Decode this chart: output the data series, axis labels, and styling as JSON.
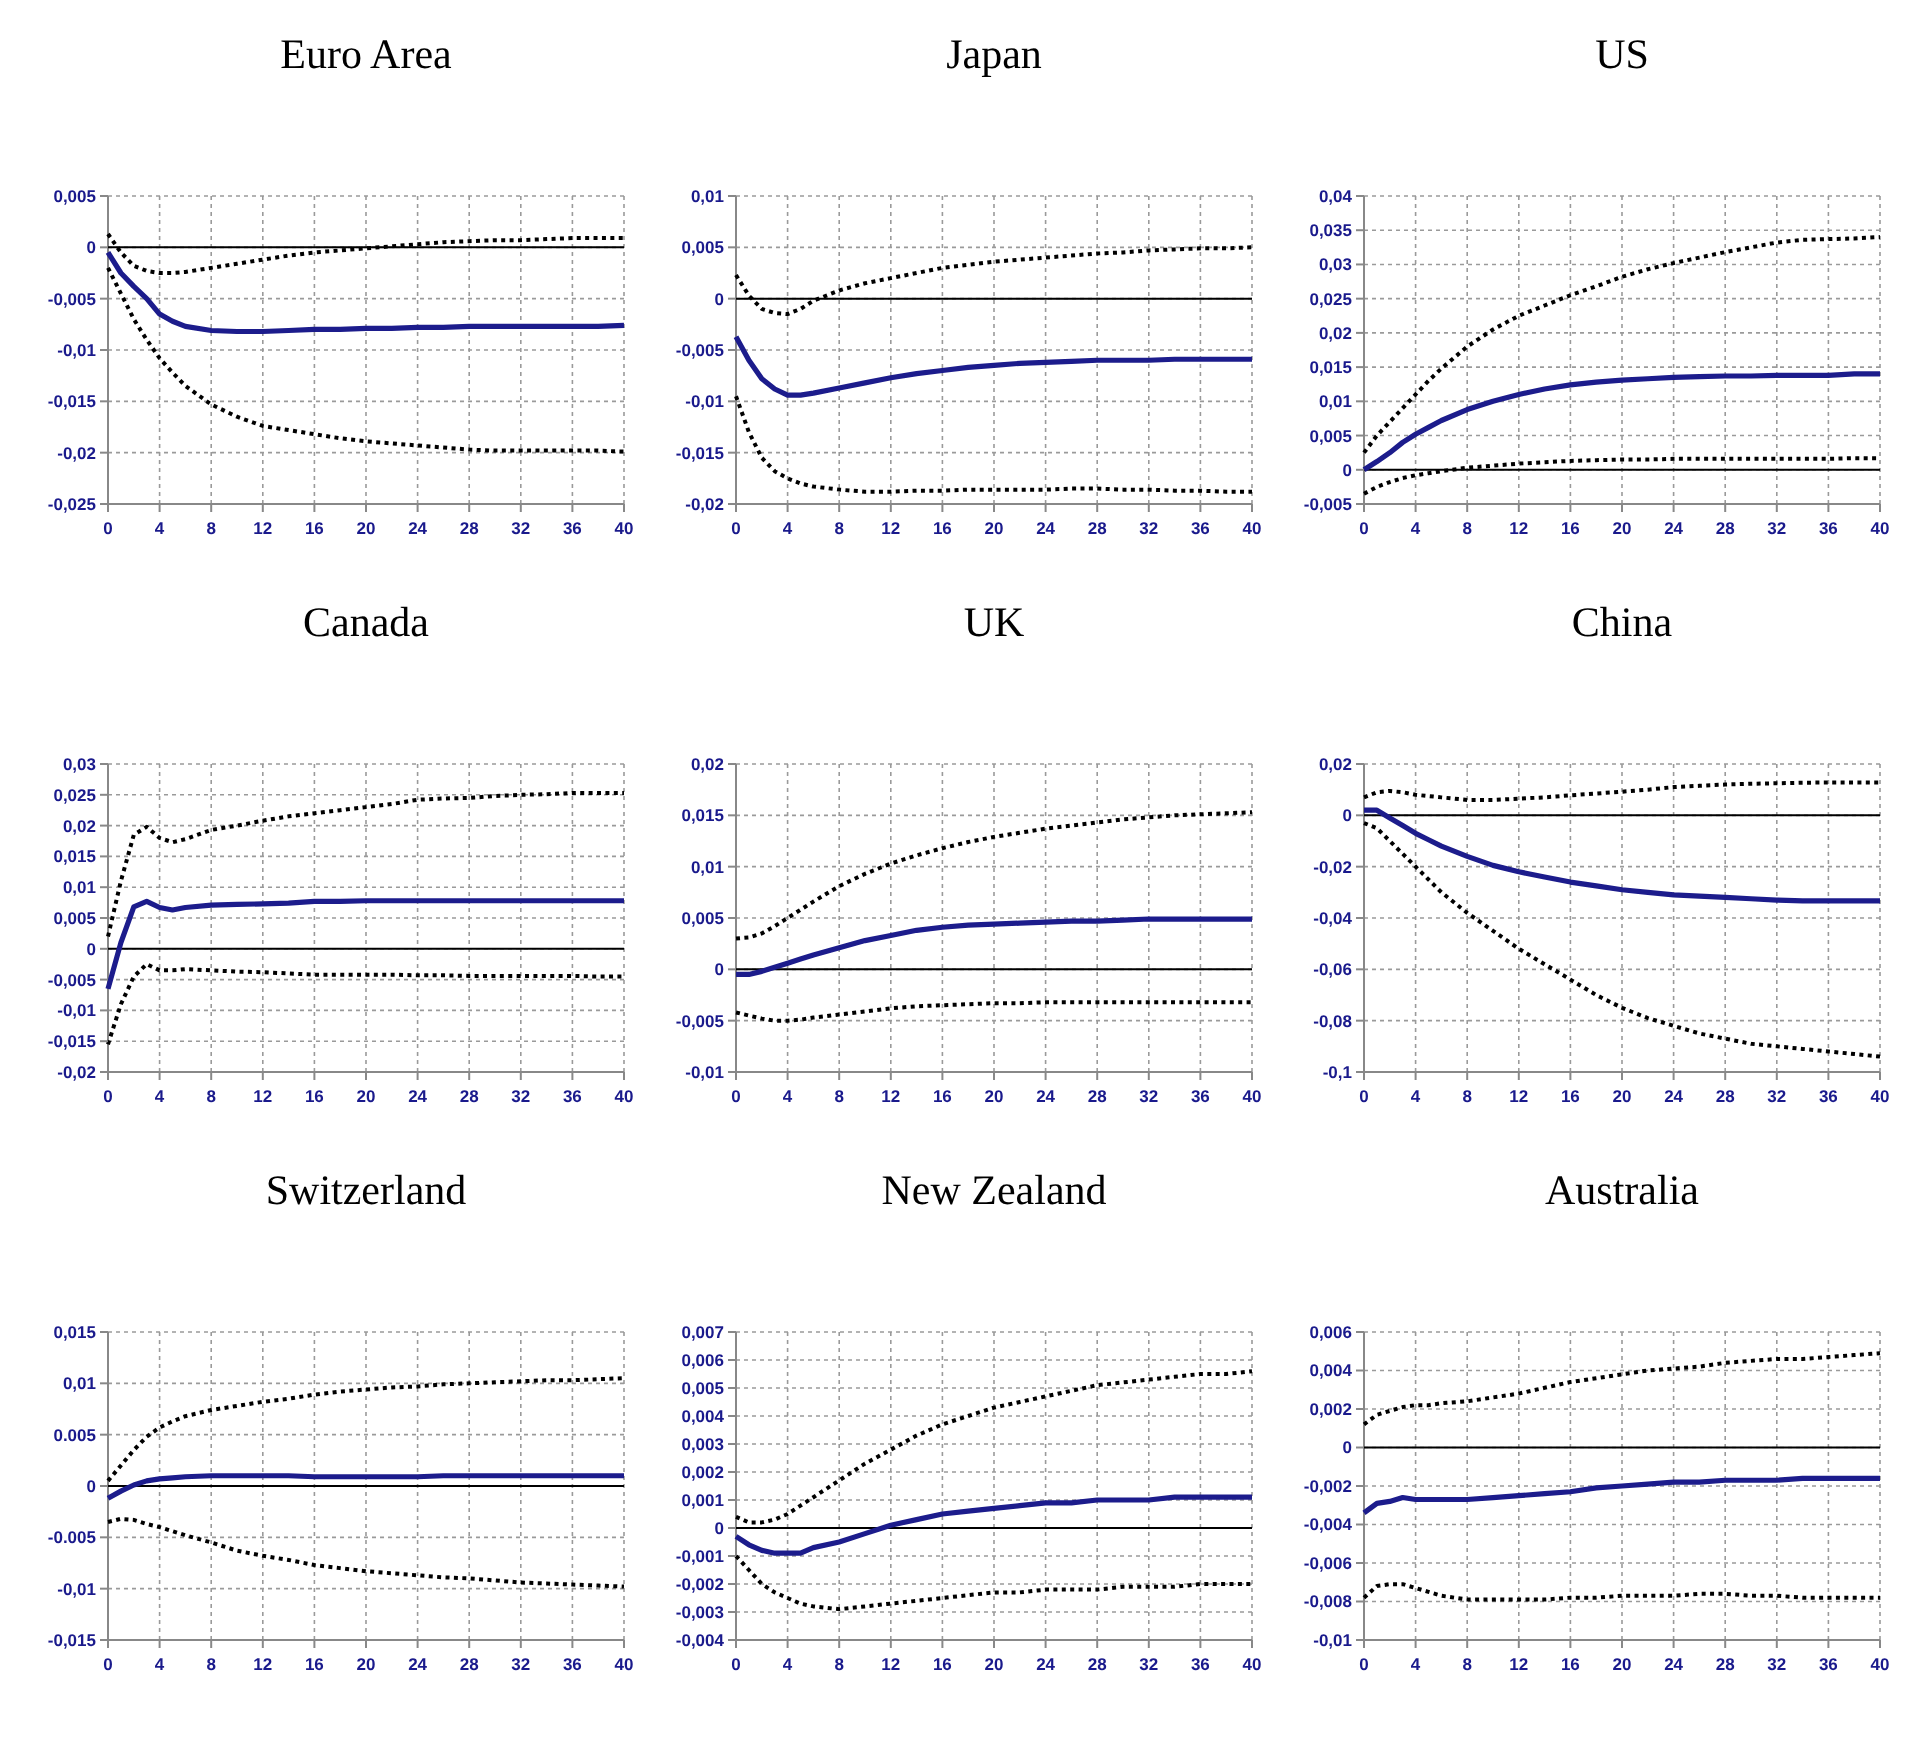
{
  "chart_data": [
    {
      "type": "line",
      "title": "Euro Area",
      "x": [
        0,
        1,
        2,
        3,
        4,
        5,
        6,
        8,
        10,
        12,
        14,
        16,
        18,
        20,
        22,
        24,
        26,
        28,
        30,
        32,
        34,
        36,
        38,
        40
      ],
      "xlim": [
        0,
        40
      ],
      "xticks": [
        0,
        4,
        8,
        12,
        16,
        20,
        24,
        28,
        32,
        36,
        40
      ],
      "ylim": [
        -0.025,
        0.005
      ],
      "yticks": [
        {
          "value": -0.025,
          "label": "-0,025"
        },
        {
          "value": -0.02,
          "label": "-0,02"
        },
        {
          "value": -0.015,
          "label": "-0,015"
        },
        {
          "value": -0.01,
          "label": "-0,01"
        },
        {
          "value": -0.005,
          "label": "-0,005"
        },
        {
          "value": 0,
          "label": "0"
        },
        {
          "value": 0.005,
          "label": "0,005"
        }
      ],
      "grid": true,
      "ref_lines": [
        {
          "axis": "y",
          "value": 0,
          "color": "#000000"
        }
      ],
      "series": [
        {
          "type": "line",
          "color": "#000000",
          "line_style": "dotted",
          "values": [
            0.0013,
            -0.0005,
            -0.0018,
            -0.0023,
            -0.0025,
            -0.0025,
            -0.0024,
            -0.002,
            -0.0016,
            -0.0012,
            -0.0008,
            -0.0005,
            -0.0003,
            -0.0001,
            0.0001,
            0.0003,
            0.0005,
            0.0006,
            0.0007,
            0.0007,
            0.0008,
            0.0009,
            0.0009,
            0.0009
          ]
        },
        {
          "type": "line",
          "color": "#1c1c8c",
          "line_style": "solid",
          "values": [
            -0.0005,
            -0.0025,
            -0.0038,
            -0.005,
            -0.0065,
            -0.0072,
            -0.0077,
            -0.0081,
            -0.0082,
            -0.0082,
            -0.0081,
            -0.008,
            -0.008,
            -0.0079,
            -0.0079,
            -0.0078,
            -0.0078,
            -0.0077,
            -0.0077,
            -0.0077,
            -0.0077,
            -0.0077,
            -0.0077,
            -0.0076
          ]
        },
        {
          "type": "line",
          "color": "#000000",
          "line_style": "dotted",
          "values": [
            -0.002,
            -0.0045,
            -0.007,
            -0.009,
            -0.0108,
            -0.0122,
            -0.0135,
            -0.0153,
            -0.0165,
            -0.0174,
            -0.0178,
            -0.0182,
            -0.0186,
            -0.0189,
            -0.0191,
            -0.0193,
            -0.0195,
            -0.0197,
            -0.0198,
            -0.0198,
            -0.0198,
            -0.0198,
            -0.0198,
            -0.0199
          ]
        }
      ]
    },
    {
      "type": "line",
      "title": "Japan",
      "x": [
        0,
        1,
        2,
        3,
        4,
        5,
        6,
        8,
        10,
        12,
        14,
        16,
        18,
        20,
        22,
        24,
        26,
        28,
        30,
        32,
        34,
        36,
        38,
        40
      ],
      "xlim": [
        0,
        40
      ],
      "xticks": [
        0,
        4,
        8,
        12,
        16,
        20,
        24,
        28,
        32,
        36,
        40
      ],
      "ylim": [
        -0.02,
        0.01
      ],
      "yticks": [
        {
          "value": -0.02,
          "label": "-0,02"
        },
        {
          "value": -0.015,
          "label": "-0,015"
        },
        {
          "value": -0.01,
          "label": "-0,01"
        },
        {
          "value": -0.005,
          "label": "-0,005"
        },
        {
          "value": 0,
          "label": "0"
        },
        {
          "value": 0.005,
          "label": "0,005"
        },
        {
          "value": 0.01,
          "label": "0,01"
        }
      ],
      "grid": true,
      "ref_lines": [
        {
          "axis": "y",
          "value": 0,
          "color": "#000000"
        }
      ],
      "series": [
        {
          "type": "line",
          "color": "#000000",
          "line_style": "dotted",
          "values": [
            0.0023,
            0.0003,
            -0.001,
            -0.0014,
            -0.0015,
            -0.001,
            -0.0002,
            0.0008,
            0.0015,
            0.002,
            0.0025,
            0.003,
            0.0033,
            0.0036,
            0.0038,
            0.004,
            0.0042,
            0.0044,
            0.0045,
            0.0047,
            0.0048,
            0.0049,
            0.0049,
            0.005
          ]
        },
        {
          "type": "line",
          "color": "#1c1c8c",
          "line_style": "solid",
          "values": [
            -0.0037,
            -0.006,
            -0.0078,
            -0.0088,
            -0.0094,
            -0.0094,
            -0.0092,
            -0.0087,
            -0.0082,
            -0.0077,
            -0.0073,
            -0.007,
            -0.0067,
            -0.0065,
            -0.0063,
            -0.0062,
            -0.0061,
            -0.006,
            -0.006,
            -0.006,
            -0.0059,
            -0.0059,
            -0.0059,
            -0.0059
          ]
        },
        {
          "type": "line",
          "color": "#000000",
          "line_style": "dotted",
          "values": [
            -0.0095,
            -0.013,
            -0.0155,
            -0.0168,
            -0.0175,
            -0.018,
            -0.0183,
            -0.0186,
            -0.0188,
            -0.0188,
            -0.0187,
            -0.0187,
            -0.0186,
            -0.0186,
            -0.0186,
            -0.0186,
            -0.0185,
            -0.0185,
            -0.0186,
            -0.0186,
            -0.0187,
            -0.0187,
            -0.0188,
            -0.0188
          ]
        }
      ]
    },
    {
      "type": "line",
      "title": "US",
      "x": [
        0,
        1,
        2,
        3,
        4,
        5,
        6,
        8,
        10,
        12,
        14,
        16,
        18,
        20,
        22,
        24,
        26,
        28,
        30,
        32,
        34,
        36,
        38,
        40
      ],
      "xlim": [
        0,
        40
      ],
      "xticks": [
        0,
        4,
        8,
        12,
        16,
        20,
        24,
        28,
        32,
        36,
        40
      ],
      "ylim": [
        -0.005,
        0.04
      ],
      "yticks": [
        {
          "value": -0.005,
          "label": "-0,005"
        },
        {
          "value": 0,
          "label": "0"
        },
        {
          "value": 0.005,
          "label": "0,005"
        },
        {
          "value": 0.01,
          "label": "0,01"
        },
        {
          "value": 0.015,
          "label": "0,015"
        },
        {
          "value": 0.02,
          "label": "0,02"
        },
        {
          "value": 0.025,
          "label": "0,025"
        },
        {
          "value": 0.03,
          "label": "0,03"
        },
        {
          "value": 0.035,
          "label": "0,035"
        },
        {
          "value": 0.04,
          "label": "0,04"
        }
      ],
      "grid": true,
      "ref_lines": [
        {
          "axis": "y",
          "value": 0,
          "color": "#000000"
        }
      ],
      "series": [
        {
          "type": "line",
          "color": "#000000",
          "line_style": "dotted",
          "values": [
            0.0025,
            0.005,
            0.007,
            0.009,
            0.011,
            0.013,
            0.0148,
            0.018,
            0.0205,
            0.0225,
            0.024,
            0.0255,
            0.0268,
            0.0282,
            0.0293,
            0.0302,
            0.031,
            0.0318,
            0.0325,
            0.0332,
            0.0336,
            0.0337,
            0.0338,
            0.034
          ]
        },
        {
          "type": "line",
          "color": "#1c1c8c",
          "line_style": "solid",
          "values": [
            0,
            0.0012,
            0.0025,
            0.004,
            0.0052,
            0.0062,
            0.0072,
            0.0088,
            0.01,
            0.011,
            0.0118,
            0.0124,
            0.0128,
            0.0131,
            0.0133,
            0.0135,
            0.0136,
            0.0137,
            0.0137,
            0.0138,
            0.0138,
            0.0138,
            0.014,
            0.014
          ]
        },
        {
          "type": "line",
          "color": "#000000",
          "line_style": "dotted",
          "values": [
            -0.0035,
            -0.0025,
            -0.0018,
            -0.0012,
            -0.0008,
            -0.0005,
            -0.0002,
            0.0003,
            0.0006,
            0.0009,
            0.0011,
            0.0013,
            0.0014,
            0.0015,
            0.0015,
            0.0016,
            0.0016,
            0.0016,
            0.0016,
            0.0016,
            0.0016,
            0.0016,
            0.0017,
            0.0017
          ]
        }
      ]
    },
    {
      "type": "line",
      "title": "Canada",
      "x": [
        0,
        1,
        2,
        3,
        4,
        5,
        6,
        8,
        10,
        12,
        14,
        16,
        18,
        20,
        22,
        24,
        26,
        28,
        30,
        32,
        34,
        36,
        38,
        40
      ],
      "xlim": [
        0,
        40
      ],
      "xticks": [
        0,
        4,
        8,
        12,
        16,
        20,
        24,
        28,
        32,
        36,
        40
      ],
      "ylim": [
        -0.02,
        0.03
      ],
      "yticks": [
        {
          "value": -0.02,
          "label": "-0,02"
        },
        {
          "value": -0.015,
          "label": "-0,015"
        },
        {
          "value": -0.01,
          "label": "-0,01"
        },
        {
          "value": -0.005,
          "label": "-0,005"
        },
        {
          "value": 0,
          "label": "0"
        },
        {
          "value": 0.005,
          "label": "0,005"
        },
        {
          "value": 0.01,
          "label": "0,01"
        },
        {
          "value": 0.015,
          "label": "0,015"
        },
        {
          "value": 0.02,
          "label": "0,02"
        },
        {
          "value": 0.025,
          "label": "0,025"
        },
        {
          "value": 0.03,
          "label": "0,03"
        }
      ],
      "grid": true,
      "ref_lines": [
        {
          "axis": "y",
          "value": 0,
          "color": "#000000"
        }
      ],
      "series": [
        {
          "type": "line",
          "color": "#000000",
          "line_style": "dotted",
          "values": [
            0.002,
            0.011,
            0.0185,
            0.0198,
            0.018,
            0.0173,
            0.0178,
            0.0193,
            0.02,
            0.0208,
            0.0215,
            0.022,
            0.0225,
            0.023,
            0.0235,
            0.0242,
            0.0244,
            0.0245,
            0.0248,
            0.025,
            0.0251,
            0.0253,
            0.0253,
            0.0253
          ]
        },
        {
          "type": "line",
          "color": "#1c1c8c",
          "line_style": "solid",
          "values": [
            -0.0065,
            0.001,
            0.0068,
            0.0077,
            0.0067,
            0.0063,
            0.0067,
            0.0071,
            0.0072,
            0.0073,
            0.0074,
            0.0077,
            0.0077,
            0.0078,
            0.0078,
            0.0078,
            0.0078,
            0.0078,
            0.0078,
            0.0078,
            0.0078,
            0.0078,
            0.0078,
            0.0078
          ]
        },
        {
          "type": "line",
          "color": "#000000",
          "line_style": "dotted",
          "values": [
            -0.0155,
            -0.009,
            -0.0045,
            -0.0025,
            -0.0035,
            -0.0035,
            -0.0033,
            -0.0035,
            -0.0037,
            -0.0038,
            -0.004,
            -0.0042,
            -0.0042,
            -0.0042,
            -0.0042,
            -0.0043,
            -0.0043,
            -0.0044,
            -0.0044,
            -0.0044,
            -0.0044,
            -0.0044,
            -0.0045,
            -0.0045
          ]
        }
      ]
    },
    {
      "type": "line",
      "title": "UK",
      "x": [
        0,
        1,
        2,
        3,
        4,
        5,
        6,
        8,
        10,
        12,
        14,
        16,
        18,
        20,
        22,
        24,
        26,
        28,
        30,
        32,
        34,
        36,
        38,
        40
      ],
      "xlim": [
        0,
        40
      ],
      "xticks": [
        0,
        4,
        8,
        12,
        16,
        20,
        24,
        28,
        32,
        36,
        40
      ],
      "ylim": [
        -0.01,
        0.02
      ],
      "yticks": [
        {
          "value": -0.01,
          "label": "-0,01"
        },
        {
          "value": -0.005,
          "label": "-0,005"
        },
        {
          "value": 0,
          "label": "0"
        },
        {
          "value": 0.005,
          "label": "0,005"
        },
        {
          "value": 0.01,
          "label": "0,01"
        },
        {
          "value": 0.015,
          "label": "0,015"
        },
        {
          "value": 0.02,
          "label": "0,02"
        }
      ],
      "grid": true,
      "ref_lines": [
        {
          "axis": "y",
          "value": 0,
          "color": "#000000"
        }
      ],
      "series": [
        {
          "type": "line",
          "color": "#000000",
          "line_style": "dotted",
          "values": [
            0.003,
            0.0031,
            0.0035,
            0.0042,
            0.005,
            0.0058,
            0.0066,
            0.0081,
            0.0093,
            0.0103,
            0.0111,
            0.0118,
            0.0124,
            0.0129,
            0.0133,
            0.0137,
            0.014,
            0.0143,
            0.0146,
            0.0148,
            0.015,
            0.0151,
            0.0152,
            0.0153
          ]
        },
        {
          "type": "line",
          "color": "#1c1c8c",
          "line_style": "solid",
          "values": [
            -0.0005,
            -0.0005,
            -0.0002,
            0.0002,
            0.0006,
            0.001,
            0.0014,
            0.0021,
            0.0028,
            0.0033,
            0.0038,
            0.0041,
            0.0043,
            0.0044,
            0.0045,
            0.0046,
            0.0047,
            0.0047,
            0.0048,
            0.0049,
            0.0049,
            0.0049,
            0.0049,
            0.0049
          ]
        },
        {
          "type": "line",
          "color": "#000000",
          "line_style": "dotted",
          "values": [
            -0.0042,
            -0.0045,
            -0.0048,
            -0.005,
            -0.005,
            -0.0049,
            -0.0047,
            -0.0044,
            -0.0041,
            -0.0038,
            -0.0036,
            -0.0035,
            -0.0034,
            -0.0033,
            -0.0033,
            -0.0032,
            -0.0032,
            -0.0032,
            -0.0032,
            -0.0032,
            -0.0032,
            -0.0032,
            -0.0032,
            -0.0032
          ]
        }
      ]
    },
    {
      "type": "line",
      "title": "China",
      "x": [
        0,
        1,
        2,
        3,
        4,
        5,
        6,
        8,
        10,
        12,
        14,
        16,
        18,
        20,
        22,
        24,
        26,
        28,
        30,
        32,
        34,
        36,
        38,
        40
      ],
      "xlim": [
        0,
        40
      ],
      "xticks": [
        0,
        4,
        8,
        12,
        16,
        20,
        24,
        28,
        32,
        36,
        40
      ],
      "ylim": [
        -0.1,
        0.02
      ],
      "yticks": [
        {
          "value": -0.1,
          "label": "-0,1"
        },
        {
          "value": -0.08,
          "label": "-0,08"
        },
        {
          "value": -0.06,
          "label": "-0,06"
        },
        {
          "value": -0.04,
          "label": "-0,04"
        },
        {
          "value": -0.02,
          "label": "-0,02"
        },
        {
          "value": 0,
          "label": "0"
        },
        {
          "value": 0.02,
          "label": "0,02"
        }
      ],
      "grid": true,
      "ref_lines": [
        {
          "axis": "y",
          "value": 0,
          "color": "#000000"
        }
      ],
      "series": [
        {
          "type": "line",
          "color": "#000000",
          "line_style": "dotted",
          "values": [
            0.007,
            0.009,
            0.0095,
            0.009,
            0.008,
            0.0075,
            0.007,
            0.006,
            0.006,
            0.0065,
            0.007,
            0.0078,
            0.0085,
            0.0092,
            0.01,
            0.011,
            0.0115,
            0.012,
            0.0123,
            0.0125,
            0.0127,
            0.0128,
            0.0128,
            0.0128
          ]
        },
        {
          "type": "line",
          "color": "#1c1c8c",
          "line_style": "solid",
          "values": [
            0.002,
            0.002,
            -0.001,
            -0.004,
            -0.007,
            -0.0095,
            -0.012,
            -0.016,
            -0.0195,
            -0.022,
            -0.024,
            -0.026,
            -0.0275,
            -0.029,
            -0.03,
            -0.031,
            -0.0315,
            -0.032,
            -0.0325,
            -0.033,
            -0.0333,
            -0.0333,
            -0.0333,
            -0.0333
          ]
        },
        {
          "type": "line",
          "color": "#000000",
          "line_style": "dotted",
          "values": [
            -0.003,
            -0.005,
            -0.01,
            -0.015,
            -0.02,
            -0.025,
            -0.03,
            -0.038,
            -0.045,
            -0.052,
            -0.058,
            -0.064,
            -0.07,
            -0.075,
            -0.079,
            -0.082,
            -0.085,
            -0.087,
            -0.089,
            -0.09,
            -0.091,
            -0.092,
            -0.093,
            -0.094
          ]
        }
      ]
    },
    {
      "type": "line",
      "title": "Switzerland",
      "x": [
        0,
        1,
        2,
        3,
        4,
        5,
        6,
        8,
        10,
        12,
        14,
        16,
        18,
        20,
        22,
        24,
        26,
        28,
        30,
        32,
        34,
        36,
        38,
        40
      ],
      "xlim": [
        0,
        40
      ],
      "xticks": [
        0,
        4,
        8,
        12,
        16,
        20,
        24,
        28,
        32,
        36,
        40
      ],
      "ylim": [
        -0.015,
        0.015
      ],
      "yticks": [
        {
          "value": -0.015,
          "label": "-0,015"
        },
        {
          "value": -0.01,
          "label": "-0,01"
        },
        {
          "value": -0.005,
          "label": "-0.005"
        },
        {
          "value": 0,
          "label": "0"
        },
        {
          "value": 0.005,
          "label": "0.005"
        },
        {
          "value": 0.01,
          "label": "0,01"
        },
        {
          "value": 0.015,
          "label": "0,015"
        }
      ],
      "grid": true,
      "ref_lines": [
        {
          "axis": "y",
          "value": 0,
          "color": "#000000"
        }
      ],
      "series": [
        {
          "type": "line",
          "color": "#000000",
          "line_style": "dotted",
          "values": [
            0.0005,
            0.002,
            0.0035,
            0.0048,
            0.0057,
            0.0063,
            0.0068,
            0.0074,
            0.0078,
            0.0082,
            0.0085,
            0.0089,
            0.0092,
            0.0094,
            0.0096,
            0.0097,
            0.0099,
            0.01,
            0.0101,
            0.0102,
            0.0103,
            0.0103,
            0.0104,
            0.0105
          ]
        },
        {
          "type": "line",
          "color": "#1c1c8c",
          "line_style": "solid",
          "values": [
            -0.0012,
            -0.0005,
            0.0001,
            0.0005,
            0.0007,
            0.0008,
            0.0009,
            0.001,
            0.001,
            0.001,
            0.001,
            0.0009,
            0.0009,
            0.0009,
            0.0009,
            0.0009,
            0.001,
            0.001,
            0.001,
            0.001,
            0.001,
            0.001,
            0.001,
            0.001
          ]
        },
        {
          "type": "line",
          "color": "#000000",
          "line_style": "dotted",
          "values": [
            -0.0035,
            -0.0032,
            -0.0033,
            -0.0037,
            -0.004,
            -0.0044,
            -0.0048,
            -0.0055,
            -0.0063,
            -0.0068,
            -0.0072,
            -0.0077,
            -0.008,
            -0.0083,
            -0.0085,
            -0.0087,
            -0.0089,
            -0.009,
            -0.0092,
            -0.0094,
            -0.0095,
            -0.0096,
            -0.0097,
            -0.0098
          ]
        }
      ]
    },
    {
      "type": "line",
      "title": "New Zealand",
      "x": [
        0,
        1,
        2,
        3,
        4,
        5,
        6,
        8,
        10,
        12,
        14,
        16,
        18,
        20,
        22,
        24,
        26,
        28,
        30,
        32,
        34,
        36,
        38,
        40
      ],
      "xlim": [
        0,
        40
      ],
      "xticks": [
        0,
        4,
        8,
        12,
        16,
        20,
        24,
        28,
        32,
        36,
        40
      ],
      "ylim": [
        -0.004,
        0.007
      ],
      "yticks": [
        {
          "value": -0.004,
          "label": "-0,004"
        },
        {
          "value": -0.003,
          "label": "-0,003"
        },
        {
          "value": -0.002,
          "label": "-0,002"
        },
        {
          "value": -0.001,
          "label": "-0,001"
        },
        {
          "value": 0,
          "label": "0"
        },
        {
          "value": 0.001,
          "label": "0,001"
        },
        {
          "value": 0.002,
          "label": "0,002"
        },
        {
          "value": 0.003,
          "label": "0,003"
        },
        {
          "value": 0.004,
          "label": "0,004"
        },
        {
          "value": 0.005,
          "label": "0,005"
        },
        {
          "value": 0.006,
          "label": "0,006"
        },
        {
          "value": 0.007,
          "label": "0,007"
        }
      ],
      "grid": true,
      "ref_lines": [
        {
          "axis": "y",
          "value": 0,
          "color": "#000000"
        }
      ],
      "series": [
        {
          "type": "line",
          "color": "#000000",
          "line_style": "dotted",
          "values": [
            0.0004,
            0.0002,
            0.0002,
            0.0003,
            0.0005,
            0.0008,
            0.0011,
            0.0017,
            0.0023,
            0.0028,
            0.0033,
            0.0037,
            0.004,
            0.0043,
            0.0045,
            0.0047,
            0.0049,
            0.0051,
            0.0052,
            0.0053,
            0.0054,
            0.0055,
            0.0055,
            0.0056
          ]
        },
        {
          "type": "line",
          "color": "#1c1c8c",
          "line_style": "solid",
          "values": [
            -0.0003,
            -0.0006,
            -0.0008,
            -0.0009,
            -0.0009,
            -0.0009,
            -0.0007,
            -0.0005,
            -0.0002,
            0.0001,
            0.0003,
            0.0005,
            0.0006,
            0.0007,
            0.0008,
            0.0009,
            0.0009,
            0.001,
            0.001,
            0.001,
            0.0011,
            0.0011,
            0.0011,
            0.0011
          ]
        },
        {
          "type": "line",
          "color": "#000000",
          "line_style": "dotted",
          "values": [
            -0.001,
            -0.0015,
            -0.002,
            -0.0023,
            -0.0025,
            -0.0027,
            -0.0028,
            -0.0029,
            -0.0028,
            -0.0027,
            -0.0026,
            -0.0025,
            -0.0024,
            -0.0023,
            -0.0023,
            -0.0022,
            -0.0022,
            -0.0022,
            -0.0021,
            -0.0021,
            -0.0021,
            -0.002,
            -0.002,
            -0.002
          ]
        }
      ]
    },
    {
      "type": "line",
      "title": "Australia",
      "x": [
        0,
        1,
        2,
        3,
        4,
        5,
        6,
        8,
        10,
        12,
        14,
        16,
        18,
        20,
        22,
        24,
        26,
        28,
        30,
        32,
        34,
        36,
        38,
        40
      ],
      "xlim": [
        0,
        40
      ],
      "xticks": [
        0,
        4,
        8,
        12,
        16,
        20,
        24,
        28,
        32,
        36,
        40
      ],
      "ylim": [
        -0.01,
        0.006
      ],
      "yticks": [
        {
          "value": -0.01,
          "label": "-0,01"
        },
        {
          "value": -0.008,
          "label": "-0,008"
        },
        {
          "value": -0.006,
          "label": "-0,006"
        },
        {
          "value": -0.004,
          "label": "-0,004"
        },
        {
          "value": -0.002,
          "label": "-0,002"
        },
        {
          "value": 0,
          "label": "0"
        },
        {
          "value": 0.002,
          "label": "0,002"
        },
        {
          "value": 0.004,
          "label": "0,004"
        },
        {
          "value": 0.006,
          "label": "0,006"
        }
      ],
      "grid": true,
      "ref_lines": [
        {
          "axis": "y",
          "value": 0,
          "color": "#000000"
        }
      ],
      "series": [
        {
          "type": "line",
          "color": "#000000",
          "line_style": "dotted",
          "values": [
            0.0012,
            0.0017,
            0.0019,
            0.0021,
            0.0022,
            0.0022,
            0.0023,
            0.0024,
            0.0026,
            0.0028,
            0.0031,
            0.0034,
            0.0036,
            0.0038,
            0.004,
            0.0041,
            0.0042,
            0.0044,
            0.0045,
            0.0046,
            0.0046,
            0.0047,
            0.0048,
            0.0049
          ]
        },
        {
          "type": "line",
          "color": "#1c1c8c",
          "line_style": "solid",
          "values": [
            -0.0034,
            -0.0029,
            -0.0028,
            -0.0026,
            -0.0027,
            -0.0027,
            -0.0027,
            -0.0027,
            -0.0026,
            -0.0025,
            -0.0024,
            -0.0023,
            -0.0021,
            -0.002,
            -0.0019,
            -0.0018,
            -0.0018,
            -0.0017,
            -0.0017,
            -0.0017,
            -0.0016,
            -0.0016,
            -0.0016,
            -0.0016
          ]
        },
        {
          "type": "line",
          "color": "#000000",
          "line_style": "dotted",
          "values": [
            -0.0078,
            -0.0072,
            -0.0071,
            -0.0071,
            -0.0073,
            -0.0075,
            -0.0077,
            -0.0079,
            -0.0079,
            -0.0079,
            -0.0079,
            -0.0078,
            -0.0078,
            -0.0077,
            -0.0077,
            -0.0077,
            -0.0076,
            -0.0076,
            -0.0077,
            -0.0077,
            -0.0078,
            -0.0078,
            -0.0078,
            -0.0078
          ]
        }
      ]
    }
  ]
}
